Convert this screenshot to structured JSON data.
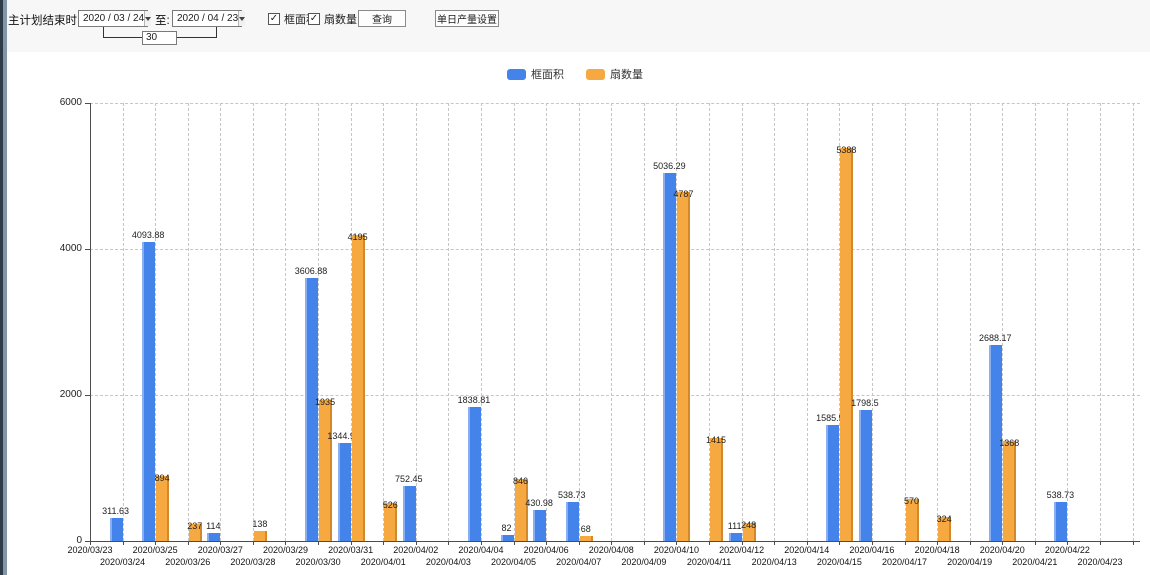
{
  "toolbar": {
    "plan_end_label": "主计划结束时间:",
    "date_from": "2020 / 03 / 24",
    "to_label": "至:",
    "date_to": "2020 / 04 / 23",
    "interval_days": "30",
    "check_glyph": "✓",
    "checkboxes": [
      {
        "label": "框面积",
        "checked": true
      },
      {
        "label": "扇数量",
        "checked": true
      }
    ],
    "query_button": "查询",
    "daily_output_button": "单日产量设置"
  },
  "legend": {
    "items": [
      {
        "label": "框面积",
        "color": "#4484ea"
      },
      {
        "label": "扇数量",
        "color": "#f5a940"
      }
    ]
  },
  "chart_data": {
    "type": "bar",
    "categories": [
      "2020/03/23",
      "2020/03/24",
      "2020/03/25",
      "2020/03/26",
      "2020/03/27",
      "2020/03/28",
      "2020/03/29",
      "2020/03/30",
      "2020/03/31",
      "2020/04/01",
      "2020/04/02",
      "2020/04/03",
      "2020/04/04",
      "2020/04/05",
      "2020/04/06",
      "2020/04/07",
      "2020/04/08",
      "2020/04/09",
      "2020/04/10",
      "2020/04/11",
      "2020/04/12",
      "2020/04/13",
      "2020/04/14",
      "2020/04/15",
      "2020/04/16",
      "2020/04/17",
      "2020/04/18",
      "2020/04/19",
      "2020/04/20",
      "2020/04/21",
      "2020/04/22",
      "2020/04/23"
    ],
    "series": [
      {
        "name": "框面积",
        "color": "#4484ea",
        "values": [
          0,
          311.63,
          4093.88,
          0,
          114,
          0,
          0,
          3606.88,
          1344.95,
          0,
          752.45,
          0,
          1838.81,
          82,
          430.98,
          538.73,
          0,
          0,
          5036.29,
          0,
          111,
          0,
          0,
          1585.96,
          1798.5,
          0,
          0,
          0,
          2688.17,
          0,
          538.73,
          0
        ]
      },
      {
        "name": "扇数量",
        "color": "#f5a940",
        "values": [
          0,
          0,
          894,
          237,
          0,
          138,
          0,
          1935,
          4195,
          526,
          0,
          0,
          0,
          846,
          0,
          68,
          0,
          0,
          4787,
          1415,
          248,
          0,
          0,
          5388,
          0,
          570,
          324,
          0,
          1368,
          0,
          0,
          0
        ]
      }
    ],
    "ylim": [
      0,
      6000
    ],
    "yticks": [
      0,
      2000,
      4000,
      6000
    ],
    "grid": true,
    "legend_position": "top-center",
    "xlabel": "",
    "ylabel": ""
  }
}
